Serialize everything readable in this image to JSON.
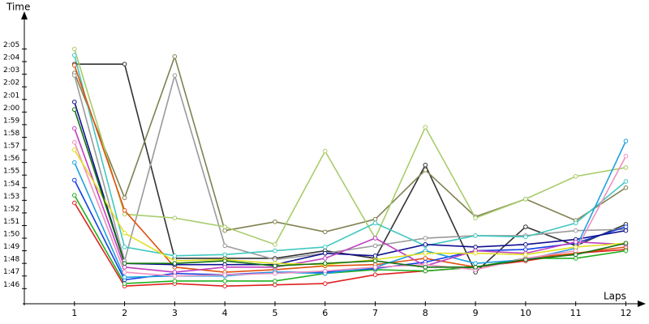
{
  "chart_data": {
    "type": "line",
    "y_label": "Time",
    "x_label": "Laps",
    "x": [
      1,
      2,
      3,
      4,
      5,
      6,
      7,
      8,
      9,
      10,
      11,
      12
    ],
    "xlim": [
      0,
      12.3
    ],
    "xticks": [
      1,
      2,
      3,
      4,
      5,
      6,
      7,
      8,
      9,
      10,
      11,
      12
    ],
    "ylim": [
      104.8,
      127.6
    ],
    "yticks": [
      {
        "value": 106,
        "label": "1:46"
      },
      {
        "value": 107,
        "label": "1:47"
      },
      {
        "value": 108,
        "label": "1:48"
      },
      {
        "value": 109,
        "label": "1:49"
      },
      {
        "value": 110,
        "label": "1:50"
      },
      {
        "value": 111,
        "label": "1:51"
      },
      {
        "value": 112,
        "label": "1:52"
      },
      {
        "value": 113,
        "label": "1:53"
      },
      {
        "value": 114,
        "label": "1:54"
      },
      {
        "value": 115,
        "label": "1:55"
      },
      {
        "value": 116,
        "label": "1:56"
      },
      {
        "value": 117,
        "label": "1:57"
      },
      {
        "value": 118,
        "label": "1:58"
      },
      {
        "value": 119,
        "label": "1:59"
      },
      {
        "value": 120,
        "label": "2:00"
      },
      {
        "value": 121,
        "label": "2:01"
      },
      {
        "value": 122,
        "label": "2:02"
      },
      {
        "value": 123,
        "label": "2:03"
      },
      {
        "value": 124,
        "label": "2:04"
      },
      {
        "value": 125,
        "label": "2:05"
      }
    ],
    "series": [
      {
        "color": "#333333",
        "values": [
          123.8,
          123.8,
          108.4,
          108.4,
          108.4,
          109.0,
          108.4,
          115.8,
          107.3,
          110.9,
          109.4,
          111.1
        ]
      },
      {
        "color": "#808050",
        "values": [
          123.1,
          113.2,
          124.4,
          110.6,
          111.3,
          110.5,
          111.5,
          115.4,
          111.7,
          113.1,
          111.4,
          114.0
        ]
      },
      {
        "color": "#9a9a9a",
        "values": [
          122.9,
          108.2,
          122.9,
          109.4,
          108.3,
          108.8,
          109.4,
          110.0,
          110.2,
          110.2,
          110.6,
          110.7
        ]
      },
      {
        "color": "#a8cc6a",
        "values": [
          125.0,
          111.9,
          111.6,
          110.9,
          109.5,
          116.9,
          110.0,
          118.8,
          111.6,
          113.1,
          114.9,
          115.6
        ]
      },
      {
        "color": "#40c8c0",
        "values": [
          124.5,
          109.3,
          108.6,
          108.7,
          109.0,
          109.3,
          111.2,
          109.4,
          110.2,
          110.1,
          111.2,
          114.5
        ]
      },
      {
        "color": "#e02020",
        "values": [
          112.8,
          106.2,
          106.4,
          106.2,
          106.3,
          106.4,
          107.1,
          107.4,
          107.7,
          108.2,
          108.8,
          109.1
        ]
      },
      {
        "color": "#e05010",
        "values": [
          123.7,
          112.2,
          107.7,
          107.3,
          107.5,
          107.8,
          107.9,
          108.4,
          107.7,
          108.4,
          108.8,
          109.3
        ]
      },
      {
        "color": "#20b020",
        "values": [
          113.4,
          106.4,
          106.6,
          106.6,
          106.6,
          107.2,
          107.5,
          107.4,
          107.7,
          108.4,
          108.4,
          109.0
        ]
      },
      {
        "color": "#1040e0",
        "values": [
          114.6,
          106.7,
          107.2,
          107.1,
          107.3,
          107.3,
          107.6,
          108.1,
          109.0,
          109.1,
          109.6,
          110.9
        ]
      },
      {
        "color": "#101090",
        "values": [
          120.8,
          108.0,
          107.9,
          107.9,
          107.9,
          108.8,
          108.6,
          109.5,
          109.3,
          109.5,
          109.9,
          110.6
        ]
      },
      {
        "color": "#20a0e0",
        "values": [
          116.0,
          106.9,
          107.0,
          107.0,
          107.3,
          107.2,
          107.7,
          109.0,
          108.0,
          108.3,
          109.2,
          117.7
        ]
      },
      {
        "color": "#c040c0",
        "values": [
          118.7,
          107.7,
          107.3,
          107.7,
          107.7,
          108.4,
          110.0,
          107.8,
          109.0,
          108.8,
          109.7,
          109.5
        ]
      },
      {
        "color": "#f090c0",
        "values": [
          117.6,
          107.3,
          107.0,
          107.1,
          107.2,
          107.4,
          107.7,
          107.9,
          107.5,
          108.4,
          109.0,
          116.5
        ]
      },
      {
        "color": "#e0e020",
        "values": [
          117.0,
          110.4,
          108.2,
          108.3,
          108.0,
          107.9,
          108.3,
          108.8,
          108.8,
          108.7,
          109.3,
          109.6
        ]
      },
      {
        "color": "#107010",
        "values": [
          120.2,
          108.0,
          108.0,
          108.2,
          107.8,
          108.0,
          108.2,
          107.7,
          107.7,
          108.3,
          108.7,
          109.6
        ]
      }
    ]
  }
}
